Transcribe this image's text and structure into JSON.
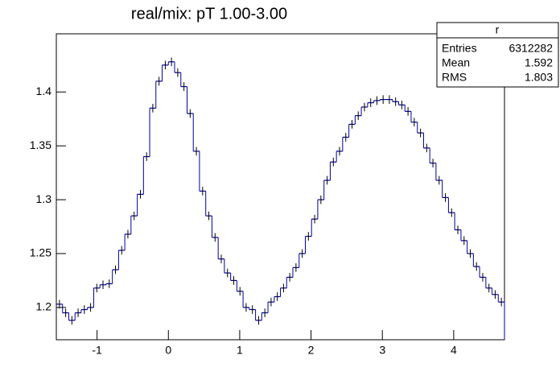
{
  "chart_data": {
    "type": "histogram",
    "title": "real/mix: pT 1.00-3.00",
    "bins": [
      -1.571,
      -1.484,
      -1.396,
      -1.309,
      -1.222,
      -1.134,
      -1.047,
      -0.96,
      -0.873,
      -0.785,
      -0.698,
      -0.611,
      -0.524,
      -0.436,
      -0.349,
      -0.262,
      -0.175,
      -0.087,
      0,
      0.087,
      0.175,
      0.262,
      0.349,
      0.436,
      0.524,
      0.611,
      0.698,
      0.785,
      0.873,
      0.96,
      1.047,
      1.134,
      1.222,
      1.309,
      1.396,
      1.484,
      1.571,
      1.658,
      1.745,
      1.833,
      1.92,
      2.007,
      2.094,
      2.182,
      2.269,
      2.356,
      2.443,
      2.531,
      2.618,
      2.705,
      2.793,
      2.88,
      2.967,
      3.054,
      3.142,
      3.229,
      3.316,
      3.403,
      3.491,
      3.578,
      3.665,
      3.752,
      3.84,
      3.927,
      4.014,
      4.102,
      4.189,
      4.276,
      4.363,
      4.451,
      4.538,
      4.625,
      4.712
    ],
    "values": [
      1.203,
      1.195,
      1.188,
      1.195,
      1.198,
      1.2,
      1.218,
      1.221,
      1.222,
      1.235,
      1.253,
      1.268,
      1.285,
      1.305,
      1.34,
      1.385,
      1.41,
      1.425,
      1.428,
      1.418,
      1.405,
      1.38,
      1.345,
      1.308,
      1.285,
      1.265,
      1.245,
      1.232,
      1.225,
      1.215,
      1.2,
      1.198,
      1.188,
      1.195,
      1.205,
      1.21,
      1.218,
      1.228,
      1.237,
      1.25,
      1.266,
      1.282,
      1.3,
      1.318,
      1.335,
      1.345,
      1.358,
      1.37,
      1.378,
      1.386,
      1.39,
      1.392,
      1.393,
      1.393,
      1.391,
      1.388,
      1.382,
      1.372,
      1.362,
      1.348,
      1.334,
      1.318,
      1.302,
      1.288,
      1.272,
      1.262,
      1.25,
      1.238,
      1.228,
      1.218,
      1.212,
      1.205
    ],
    "errors": [
      0.004,
      0.004,
      0.004,
      0.004,
      0.004,
      0.004,
      0.004,
      0.004,
      0.004,
      0.004,
      0.004,
      0.004,
      0.004,
      0.004,
      0.004,
      0.004,
      0.004,
      0.004,
      0.004,
      0.004,
      0.004,
      0.004,
      0.004,
      0.004,
      0.004,
      0.004,
      0.004,
      0.004,
      0.004,
      0.004,
      0.004,
      0.004,
      0.004,
      0.004,
      0.004,
      0.004,
      0.004,
      0.004,
      0.004,
      0.004,
      0.004,
      0.004,
      0.004,
      0.004,
      0.004,
      0.004,
      0.004,
      0.004,
      0.004,
      0.004,
      0.004,
      0.004,
      0.004,
      0.004,
      0.004,
      0.004,
      0.004,
      0.004,
      0.004,
      0.004,
      0.004,
      0.004,
      0.004,
      0.004,
      0.004,
      0.004,
      0.004,
      0.004,
      0.004,
      0.004,
      0.004,
      0.004
    ],
    "color": "#000099",
    "xlim": [
      -1.571,
      4.712
    ],
    "xticks": [
      -1,
      0,
      1,
      2,
      3,
      4
    ],
    "ylim": [
      1.17,
      1.454
    ],
    "yticks": [
      1.2,
      1.25,
      1.3,
      1.35,
      1.4
    ],
    "stats": {
      "title": "r",
      "rows": [
        {
          "label": "Entries",
          "value": 6312282
        },
        {
          "label": "Mean",
          "value": 1.592
        },
        {
          "label": "RMS",
          "value": 1.803
        }
      ]
    }
  }
}
